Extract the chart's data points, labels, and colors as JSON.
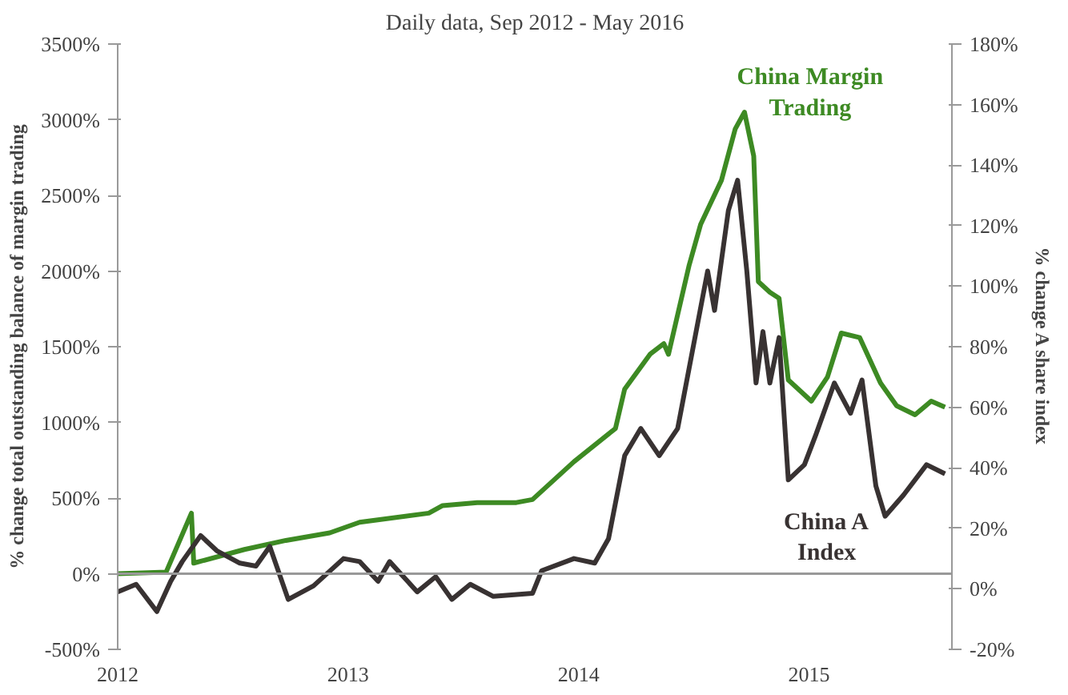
{
  "chart_data": {
    "type": "line",
    "title": "Daily data, Sep 2012 - May 2016",
    "ylabel": "% change total outstanding balance of margin trading",
    "y2label": "% change A share index",
    "xlim": [
      2012,
      2015.62
    ],
    "xticks": [
      2012,
      2013,
      2014,
      2015
    ],
    "ylim": [
      -500,
      3500
    ],
    "yticks": [
      {
        "value": -500,
        "label": "-500%"
      },
      {
        "value": 0,
        "label": "0%"
      },
      {
        "value": 500,
        "label": "500%"
      },
      {
        "value": 1000,
        "label": "1000%"
      },
      {
        "value": 1500,
        "label": "1500%"
      },
      {
        "value": 2000,
        "label": "2000%"
      },
      {
        "value": 2500,
        "label": "2500%"
      },
      {
        "value": 3000,
        "label": "3000%"
      },
      {
        "value": 3500,
        "label": "3500%"
      }
    ],
    "y2lim": [
      -20,
      180
    ],
    "y2ticks": [
      {
        "value": -20,
        "label": "-20%"
      },
      {
        "value": 0,
        "label": "0%"
      },
      {
        "value": 20,
        "label": "20%"
      },
      {
        "value": 40,
        "label": "40%"
      },
      {
        "value": 60,
        "label": "60%"
      },
      {
        "value": 80,
        "label": "80%"
      },
      {
        "value": 100,
        "label": "100%"
      },
      {
        "value": 120,
        "label": "120%"
      },
      {
        "value": 140,
        "label": "140%"
      },
      {
        "value": 160,
        "label": "160%"
      },
      {
        "value": 180,
        "label": "180%"
      }
    ],
    "grid": false,
    "ref_lines": [
      {
        "axis": "y",
        "value": 0,
        "color": "#999999"
      }
    ],
    "series": [
      {
        "color": "#3d8a23",
        "x": [
          2012,
          2012.21,
          2012.32,
          2012.33,
          2012.55,
          2012.73,
          2012.92,
          2013.05,
          2013.35,
          2013.41,
          2013.56,
          2013.73,
          2013.8,
          2013.98,
          2014.16,
          2014.2,
          2014.31,
          2014.37,
          2014.39,
          2014.48,
          2014.53,
          2014.62,
          2014.68,
          2014.72,
          2014.76,
          2014.78,
          2014.83,
          2014.87,
          2014.91,
          2015.01,
          2015.08,
          2015.14,
          2015.22,
          2015.31,
          2015.38,
          2015.46,
          2015.53,
          2015.59
        ],
        "values": [
          0,
          10,
          400,
          70,
          160,
          220,
          270,
          340,
          400,
          450,
          470,
          470,
          490,
          740,
          960,
          1220,
          1450,
          1520,
          1450,
          2040,
          2310,
          2600,
          2940,
          3050,
          2760,
          1930,
          1860,
          1820,
          1280,
          1140,
          1300,
          1590,
          1560,
          1260,
          1110,
          1050,
          1140,
          1100
        ]
      },
      {
        "color": "#383232",
        "axis": "y2",
        "x": [
          2012,
          2012.08,
          2012.17,
          2012.23,
          2012.28,
          2012.36,
          2012.43,
          2012.53,
          2012.6,
          2012.66,
          2012.74,
          2012.85,
          2012.98,
          2013.05,
          2013.13,
          2013.18,
          2013.3,
          2013.38,
          2013.45,
          2013.53,
          2013.63,
          2013.8,
          2013.84,
          2013.98,
          2014.07,
          2014.13,
          2014.2,
          2014.27,
          2014.35,
          2014.43,
          2014.56,
          2014.59,
          2014.65,
          2014.69,
          2014.73,
          2014.77,
          2014.8,
          2014.83,
          2014.87,
          2014.91,
          2014.98,
          2015.03,
          2015.11,
          2015.18,
          2015.23,
          2015.29,
          2015.33,
          2015.41,
          2015.51,
          2015.59
        ],
        "values": [
          -1,
          1.5,
          -7.5,
          2.5,
          9,
          17.6,
          12.6,
          8.5,
          7.5,
          14,
          -3.5,
          1,
          10,
          9,
          2.5,
          9,
          -1,
          4,
          -3.5,
          1.5,
          -2.5,
          -1.5,
          6,
          10,
          8.5,
          16.6,
          44,
          53,
          44,
          53,
          105,
          92,
          125,
          135,
          105,
          68,
          85,
          68,
          83,
          36,
          41,
          51,
          68,
          58,
          69,
          34,
          24,
          31,
          41,
          38
        ]
      }
    ],
    "annotations": [
      "China Margin Trading",
      "China A Index"
    ]
  }
}
